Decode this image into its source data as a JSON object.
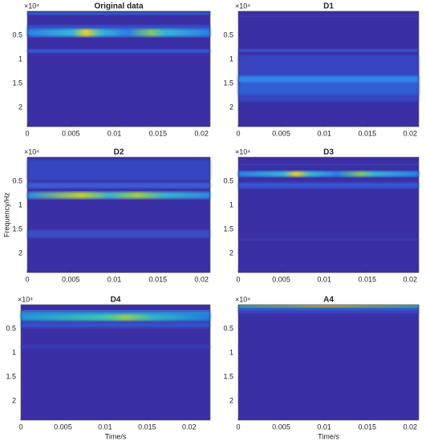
{
  "chart_data": [
    {
      "type": "spectrogram",
      "title": "Original data",
      "exponent_label": "×10⁴",
      "xlim": [
        0,
        0.021
      ],
      "xticks": [
        0,
        0.005,
        0.01,
        0.015,
        0.02
      ],
      "ylim": [
        0,
        2.4
      ],
      "yticks": [
        0.5,
        1,
        1.5,
        2
      ],
      "y_reversed": true
    },
    {
      "type": "spectrogram",
      "title": "D1",
      "exponent_label": "×10⁴",
      "xlim": [
        0,
        0.021
      ],
      "xticks": [
        0,
        0.005,
        0.01,
        0.015,
        0.02
      ],
      "ylim": [
        0,
        2.4
      ],
      "yticks": [
        0.5,
        1,
        1.5,
        2
      ],
      "y_reversed": true
    },
    {
      "type": "spectrogram",
      "title": "D2",
      "exponent_label": "×10⁴",
      "ylabel": "Frequency/Hz",
      "xlim": [
        0,
        0.021
      ],
      "xticks": [
        0,
        0.005,
        0.01,
        0.015,
        0.02
      ],
      "ylim": [
        0,
        2.4
      ],
      "yticks": [
        0.5,
        1,
        1.5,
        2
      ],
      "y_reversed": true
    },
    {
      "type": "spectrogram",
      "title": "D3",
      "exponent_label": "×10⁴",
      "xlim": [
        0,
        0.021
      ],
      "xticks": [
        0,
        0.005,
        0.01,
        0.015,
        0.02
      ],
      "ylim": [
        0,
        2.4
      ],
      "yticks": [
        0.5,
        1,
        1.5,
        2
      ],
      "y_reversed": true
    },
    {
      "type": "spectrogram",
      "title": "D4",
      "exponent_label": "×10⁴",
      "xlabel": "Time/s",
      "xlim": [
        0,
        0.0225
      ],
      "xticks": [
        0,
        0.005,
        0.01,
        0.015,
        0.02
      ],
      "ylim": [
        0,
        2.4
      ],
      "yticks": [
        0.5,
        1,
        1.5,
        2
      ],
      "y_reversed": true
    },
    {
      "type": "spectrogram",
      "title": "A4",
      "exponent_label": "×10⁴",
      "xlabel": "Time/s",
      "xlim": [
        0,
        0.021
      ],
      "xticks": [
        0,
        0.005,
        0.01,
        0.015,
        0.02
      ],
      "ylim": [
        0,
        2.4
      ],
      "yticks": [
        0.5,
        1,
        1.5,
        2
      ],
      "y_reversed": true
    }
  ]
}
